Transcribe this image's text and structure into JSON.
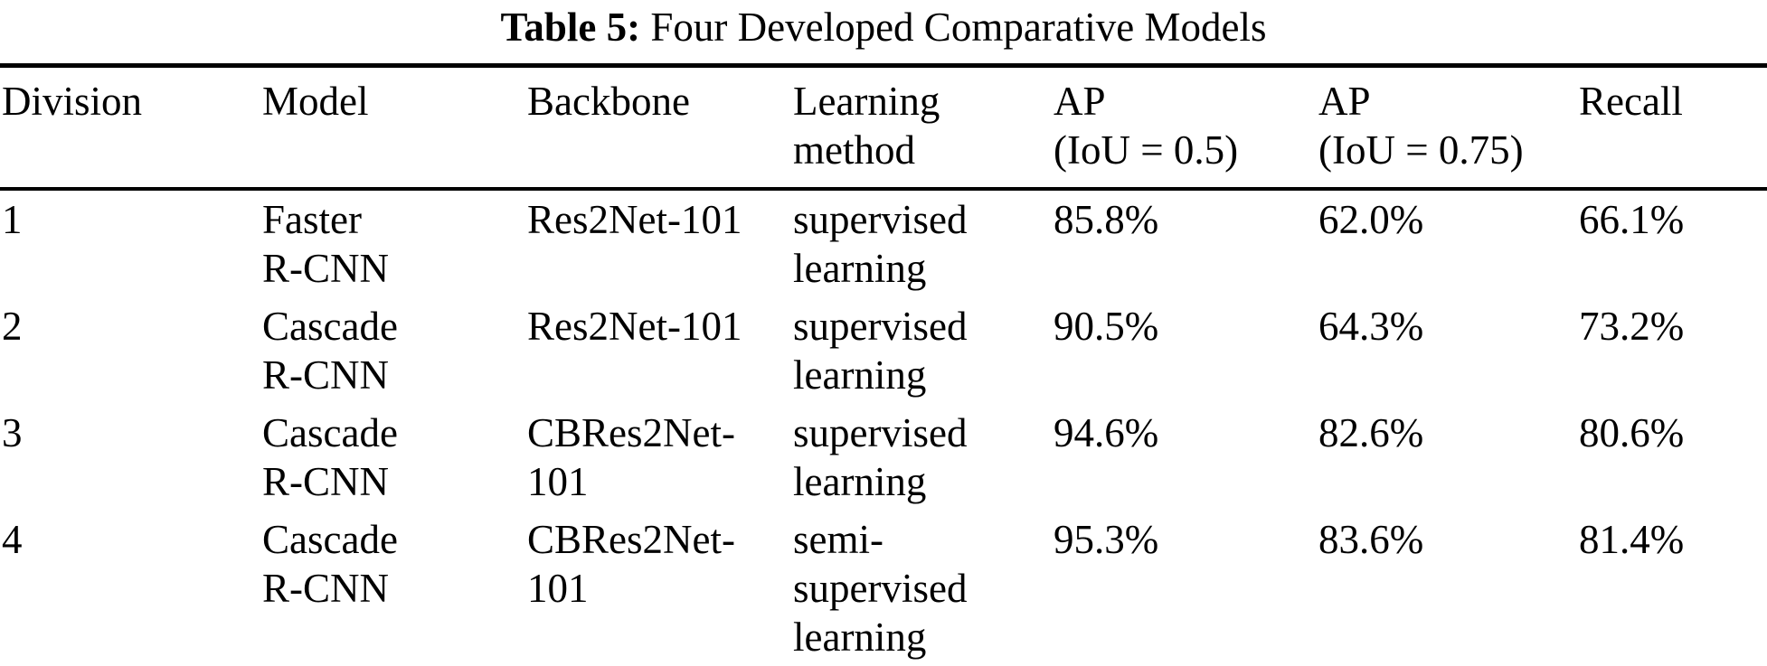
{
  "caption": {
    "label": "Table 5:",
    "text": " Four Developed Comparative Models"
  },
  "table": {
    "headers": [
      "Division",
      "Model",
      "Backbone",
      "Learning\nmethod",
      "AP\n(IoU = 0.5)",
      "AP\n(IoU = 0.75)",
      "Recall"
    ],
    "column_keys": [
      "division",
      "model",
      "backbone",
      "learning-method",
      "ap-iou-0.5",
      "ap-iou-0.75",
      "recall"
    ],
    "rows": [
      [
        "1",
        "Faster\nR-CNN",
        "Res2Net-101",
        "supervised\nlearning",
        "85.8%",
        "62.0%",
        "66.1%"
      ],
      [
        "2",
        "Cascade\nR-CNN",
        "Res2Net-101",
        "supervised\nlearning",
        "90.5%",
        "64.3%",
        "73.2%"
      ],
      [
        "3",
        "Cascade\nR-CNN",
        "CBRes2Net-\n101",
        "supervised\nlearning",
        "94.6%",
        "82.6%",
        "80.6%"
      ],
      [
        "4",
        "Cascade\nR-CNN",
        "CBRes2Net-\n101",
        "semi-\nsupervised\nlearning",
        "95.3%",
        "83.6%",
        "81.4%"
      ]
    ]
  }
}
